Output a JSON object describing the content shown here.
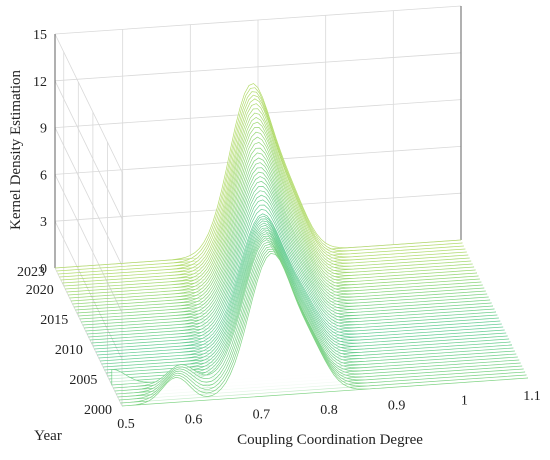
{
  "chart_data": {
    "type": "3d-ridgeline-kernel-density",
    "title": "",
    "xlabel": "Coupling Coordination Degree",
    "ylabel": "Year",
    "zlabel": "Kernel Density Estimation",
    "xlim": [
      0.5,
      1.1
    ],
    "ylim": [
      2000,
      2023
    ],
    "zlim": [
      0,
      15
    ],
    "x_ticks": [
      "0.5",
      "0.6",
      "0.7",
      "0.8",
      "0.9",
      "1",
      "1.1"
    ],
    "y_ticks": [
      "2000",
      "2005",
      "2010",
      "2015",
      "2020",
      "2023"
    ],
    "z_ticks": [
      "0",
      "3",
      "6",
      "9",
      "12",
      "15"
    ],
    "grid": true,
    "colormap": [
      "#6a5acd",
      "#4aa3df",
      "#3cc4b4",
      "#8fd67a",
      "#f5e65c"
    ],
    "series": [
      {
        "year": 2000,
        "peak_x": 0.72,
        "peak_density": 9.0,
        "secondary_x": 0.58,
        "secondary_density": 1.6
      },
      {
        "year": 2003,
        "peak_x": 0.725,
        "peak_density": 8.7,
        "secondary_x": 0.6,
        "secondary_density": 1.2
      },
      {
        "year": 2006,
        "peak_x": 0.735,
        "peak_density": 8.3
      },
      {
        "year": 2009,
        "peak_x": 0.745,
        "peak_density": 8.0
      },
      {
        "year": 2012,
        "peak_x": 0.755,
        "peak_density": 8.6
      },
      {
        "year": 2015,
        "peak_x": 0.765,
        "peak_density": 9.2
      },
      {
        "year": 2018,
        "peak_x": 0.775,
        "peak_density": 10.0
      },
      {
        "year": 2021,
        "peak_x": 0.785,
        "peak_density": 10.6
      },
      {
        "year": 2023,
        "peak_x": 0.79,
        "peak_density": 10.8
      }
    ]
  }
}
